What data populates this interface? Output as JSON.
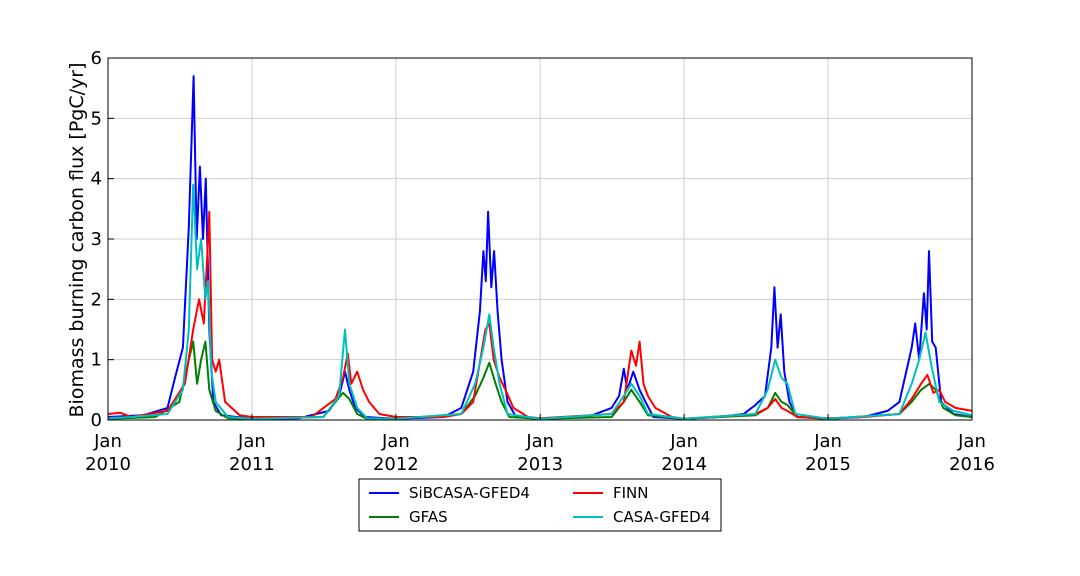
{
  "chart_data": {
    "type": "line",
    "title": "",
    "xlabel": "",
    "ylabel": "Biomass burning carbon flux [PgC/yr]",
    "ylim": [
      0,
      6
    ],
    "xlim": [
      "2010-01-01",
      "2016-01-01"
    ],
    "grid": true,
    "legend_position": "bottom-center",
    "x_ticks": [
      {
        "date": "2010-01-01",
        "month": "Jan",
        "year": "2010"
      },
      {
        "date": "2011-01-01",
        "month": "Jan",
        "year": "2011"
      },
      {
        "date": "2012-01-01",
        "month": "Jan",
        "year": "2012"
      },
      {
        "date": "2013-01-01",
        "month": "Jan",
        "year": "2013"
      },
      {
        "date": "2014-01-01",
        "month": "Jan",
        "year": "2014"
      },
      {
        "date": "2015-01-01",
        "month": "Jan",
        "year": "2015"
      },
      {
        "date": "2016-01-01",
        "month": "Jan",
        "year": "2016"
      }
    ],
    "y_ticks": [
      "0",
      "1",
      "2",
      "3",
      "4",
      "5",
      "6"
    ],
    "series": [
      {
        "name": "SiBCASA-GFED4",
        "color": "#0000ff",
        "points": [
          [
            "2010-01-01",
            0.05
          ],
          [
            "2010-04-01",
            0.08
          ],
          [
            "2010-06-01",
            0.2
          ],
          [
            "2010-06-20",
            0.7
          ],
          [
            "2010-07-10",
            1.2
          ],
          [
            "2010-07-25",
            3.2
          ],
          [
            "2010-08-06",
            5.7
          ],
          [
            "2010-08-14",
            3.0
          ],
          [
            "2010-08-22",
            4.2
          ],
          [
            "2010-08-30",
            3.0
          ],
          [
            "2010-09-06",
            4.0
          ],
          [
            "2010-09-15",
            1.5
          ],
          [
            "2010-09-25",
            0.3
          ],
          [
            "2010-10-15",
            0.08
          ],
          [
            "2011-01-01",
            0.02
          ],
          [
            "2011-05-01",
            0.03
          ],
          [
            "2011-07-15",
            0.15
          ],
          [
            "2011-08-10",
            0.4
          ],
          [
            "2011-08-25",
            0.8
          ],
          [
            "2011-09-05",
            0.5
          ],
          [
            "2011-09-20",
            0.2
          ],
          [
            "2011-10-15",
            0.05
          ],
          [
            "2012-01-01",
            0.02
          ],
          [
            "2012-05-01",
            0.05
          ],
          [
            "2012-06-15",
            0.2
          ],
          [
            "2012-07-15",
            0.8
          ],
          [
            "2012-08-01",
            1.8
          ],
          [
            "2012-08-10",
            2.8
          ],
          [
            "2012-08-16",
            2.3
          ],
          [
            "2012-08-22",
            3.45
          ],
          [
            "2012-08-30",
            2.2
          ],
          [
            "2012-09-06",
            2.8
          ],
          [
            "2012-09-15",
            1.8
          ],
          [
            "2012-09-25",
            1.0
          ],
          [
            "2012-10-10",
            0.3
          ],
          [
            "2012-11-01",
            0.05
          ],
          [
            "2013-01-01",
            0.02
          ],
          [
            "2013-05-01",
            0.05
          ],
          [
            "2013-07-01",
            0.2
          ],
          [
            "2013-07-20",
            0.4
          ],
          [
            "2013-08-01",
            0.85
          ],
          [
            "2013-08-10",
            0.5
          ],
          [
            "2013-08-25",
            0.8
          ],
          [
            "2013-09-10",
            0.5
          ],
          [
            "2013-09-25",
            0.3
          ],
          [
            "2013-10-15",
            0.05
          ],
          [
            "2014-01-01",
            0.02
          ],
          [
            "2014-04-01",
            0.05
          ],
          [
            "2014-06-01",
            0.1
          ],
          [
            "2014-07-01",
            0.25
          ],
          [
            "2014-07-25",
            0.4
          ],
          [
            "2014-08-10",
            1.2
          ],
          [
            "2014-08-18",
            2.2
          ],
          [
            "2014-08-26",
            1.2
          ],
          [
            "2014-09-03",
            1.75
          ],
          [
            "2014-09-12",
            0.8
          ],
          [
            "2014-09-25",
            0.3
          ],
          [
            "2014-10-15",
            0.05
          ],
          [
            "2015-01-01",
            0.02
          ],
          [
            "2015-04-01",
            0.05
          ],
          [
            "2015-06-01",
            0.15
          ],
          [
            "2015-07-01",
            0.3
          ],
          [
            "2015-08-01",
            1.2
          ],
          [
            "2015-08-10",
            1.6
          ],
          [
            "2015-08-20",
            1.0
          ],
          [
            "2015-09-01",
            2.1
          ],
          [
            "2015-09-08",
            1.5
          ],
          [
            "2015-09-14",
            2.8
          ],
          [
            "2015-09-22",
            1.3
          ],
          [
            "2015-10-01",
            1.2
          ],
          [
            "2015-10-15",
            0.3
          ],
          [
            "2015-11-15",
            0.1
          ],
          [
            "2016-01-01",
            0.05
          ]
        ]
      },
      {
        "name": "GFAS",
        "color": "#008000",
        "points": [
          [
            "2010-01-01",
            0.02
          ],
          [
            "2010-05-01",
            0.05
          ],
          [
            "2010-07-01",
            0.3
          ],
          [
            "2010-07-25",
            1.0
          ],
          [
            "2010-08-05",
            1.3
          ],
          [
            "2010-08-15",
            0.6
          ],
          [
            "2010-08-25",
            1.0
          ],
          [
            "2010-09-05",
            1.3
          ],
          [
            "2010-09-15",
            0.5
          ],
          [
            "2010-10-01",
            0.15
          ],
          [
            "2010-11-01",
            0.03
          ],
          [
            "2011-01-01",
            0.02
          ],
          [
            "2011-07-01",
            0.05
          ],
          [
            "2011-08-01",
            0.3
          ],
          [
            "2011-08-20",
            0.45
          ],
          [
            "2011-09-05",
            0.35
          ],
          [
            "2011-09-25",
            0.1
          ],
          [
            "2011-10-20",
            0.02
          ],
          [
            "2012-01-01",
            0.02
          ],
          [
            "2012-06-15",
            0.1
          ],
          [
            "2012-07-20",
            0.4
          ],
          [
            "2012-08-10",
            0.7
          ],
          [
            "2012-08-25",
            0.95
          ],
          [
            "2012-09-10",
            0.6
          ],
          [
            "2012-09-25",
            0.3
          ],
          [
            "2012-10-15",
            0.05
          ],
          [
            "2013-01-01",
            0.02
          ],
          [
            "2013-07-01",
            0.05
          ],
          [
            "2013-08-01",
            0.3
          ],
          [
            "2013-08-20",
            0.5
          ],
          [
            "2013-09-10",
            0.3
          ],
          [
            "2013-10-01",
            0.08
          ],
          [
            "2014-01-01",
            0.02
          ],
          [
            "2014-07-01",
            0.08
          ],
          [
            "2014-08-01",
            0.2
          ],
          [
            "2014-08-20",
            0.45
          ],
          [
            "2014-09-05",
            0.3
          ],
          [
            "2014-09-20",
            0.25
          ],
          [
            "2014-10-15",
            0.05
          ],
          [
            "2015-01-01",
            0.02
          ],
          [
            "2015-07-01",
            0.1
          ],
          [
            "2015-08-01",
            0.3
          ],
          [
            "2015-08-25",
            0.5
          ],
          [
            "2015-09-15",
            0.6
          ],
          [
            "2015-10-01",
            0.5
          ],
          [
            "2015-10-20",
            0.2
          ],
          [
            "2015-11-20",
            0.08
          ],
          [
            "2016-01-01",
            0.05
          ]
        ]
      },
      {
        "name": "FINN",
        "color": "#ff0000",
        "points": [
          [
            "2010-01-01",
            0.1
          ],
          [
            "2010-02-01",
            0.12
          ],
          [
            "2010-03-01",
            0.05
          ],
          [
            "2010-06-01",
            0.15
          ],
          [
            "2010-07-15",
            0.6
          ],
          [
            "2010-08-05",
            1.5
          ],
          [
            "2010-08-20",
            2.0
          ],
          [
            "2010-09-01",
            1.6
          ],
          [
            "2010-09-08",
            2.5
          ],
          [
            "2010-09-15",
            3.45
          ],
          [
            "2010-09-22",
            1.0
          ],
          [
            "2010-10-01",
            0.8
          ],
          [
            "2010-10-10",
            1.0
          ],
          [
            "2010-10-25",
            0.3
          ],
          [
            "2010-12-01",
            0.08
          ],
          [
            "2011-01-01",
            0.05
          ],
          [
            "2011-06-01",
            0.05
          ],
          [
            "2011-08-01",
            0.35
          ],
          [
            "2011-08-20",
            0.7
          ],
          [
            "2011-09-01",
            1.1
          ],
          [
            "2011-09-10",
            0.6
          ],
          [
            "2011-09-25",
            0.8
          ],
          [
            "2011-10-10",
            0.5
          ],
          [
            "2011-10-25",
            0.3
          ],
          [
            "2011-11-20",
            0.1
          ],
          [
            "2012-01-01",
            0.05
          ],
          [
            "2012-05-01",
            0.05
          ],
          [
            "2012-06-15",
            0.1
          ],
          [
            "2012-07-15",
            0.3
          ],
          [
            "2012-08-15",
            1.5
          ],
          [
            "2012-08-25",
            1.6
          ],
          [
            "2012-09-05",
            1.0
          ],
          [
            "2012-09-20",
            0.7
          ],
          [
            "2012-10-05",
            0.5
          ],
          [
            "2012-10-25",
            0.2
          ],
          [
            "2012-12-01",
            0.05
          ],
          [
            "2013-01-01",
            0.03
          ],
          [
            "2013-07-01",
            0.1
          ],
          [
            "2013-08-01",
            0.3
          ],
          [
            "2013-08-20",
            1.15
          ],
          [
            "2013-09-01",
            0.9
          ],
          [
            "2013-09-10",
            1.3
          ],
          [
            "2013-09-20",
            0.6
          ],
          [
            "2013-10-01",
            0.4
          ],
          [
            "2013-10-20",
            0.2
          ],
          [
            "2013-12-01",
            0.05
          ],
          [
            "2014-01-01",
            0.02
          ],
          [
            "2014-07-01",
            0.1
          ],
          [
            "2014-08-01",
            0.2
          ],
          [
            "2014-08-20",
            0.35
          ],
          [
            "2014-09-05",
            0.2
          ],
          [
            "2014-09-20",
            0.15
          ],
          [
            "2014-10-15",
            0.05
          ],
          [
            "2015-01-01",
            0.03
          ],
          [
            "2015-04-01",
            0.05
          ],
          [
            "2015-07-01",
            0.1
          ],
          [
            "2015-08-01",
            0.35
          ],
          [
            "2015-08-25",
            0.6
          ],
          [
            "2015-09-10",
            0.75
          ],
          [
            "2015-09-25",
            0.45
          ],
          [
            "2015-10-10",
            0.5
          ],
          [
            "2015-10-25",
            0.3
          ],
          [
            "2015-11-20",
            0.2
          ],
          [
            "2016-01-01",
            0.15
          ]
        ]
      },
      {
        "name": "CASA-GFED4",
        "color": "#00bfbf",
        "points": [
          [
            "2010-01-01",
            0.03
          ],
          [
            "2010-03-01",
            0.05
          ],
          [
            "2010-06-01",
            0.1
          ],
          [
            "2010-07-10",
            0.5
          ],
          [
            "2010-07-25",
            1.5
          ],
          [
            "2010-08-05",
            3.9
          ],
          [
            "2010-08-15",
            2.5
          ],
          [
            "2010-08-25",
            3.0
          ],
          [
            "2010-09-05",
            2.0
          ],
          [
            "2010-09-12",
            2.3
          ],
          [
            "2010-09-20",
            0.8
          ],
          [
            "2010-10-01",
            0.3
          ],
          [
            "2010-11-01",
            0.05
          ],
          [
            "2011-01-01",
            0.02
          ],
          [
            "2011-07-01",
            0.05
          ],
          [
            "2011-08-10",
            0.4
          ],
          [
            "2011-08-25",
            1.5
          ],
          [
            "2011-09-05",
            0.6
          ],
          [
            "2011-09-25",
            0.2
          ],
          [
            "2011-10-20",
            0.03
          ],
          [
            "2012-01-01",
            0.02
          ],
          [
            "2012-06-15",
            0.1
          ],
          [
            "2012-07-20",
            0.6
          ],
          [
            "2012-08-10",
            1.2
          ],
          [
            "2012-08-25",
            1.75
          ],
          [
            "2012-09-05",
            1.2
          ],
          [
            "2012-09-20",
            0.6
          ],
          [
            "2012-10-10",
            0.1
          ],
          [
            "2013-01-01",
            0.02
          ],
          [
            "2013-07-01",
            0.1
          ],
          [
            "2013-08-01",
            0.4
          ],
          [
            "2013-08-20",
            0.6
          ],
          [
            "2013-09-10",
            0.4
          ],
          [
            "2013-10-01",
            0.1
          ],
          [
            "2014-01-01",
            0.02
          ],
          [
            "2014-07-01",
            0.1
          ],
          [
            "2014-08-01",
            0.5
          ],
          [
            "2014-08-20",
            1.0
          ],
          [
            "2014-09-05",
            0.7
          ],
          [
            "2014-09-20",
            0.6
          ],
          [
            "2014-10-10",
            0.1
          ],
          [
            "2015-01-01",
            0.02
          ],
          [
            "2015-07-01",
            0.1
          ],
          [
            "2015-08-01",
            0.6
          ],
          [
            "2015-08-20",
            1.0
          ],
          [
            "2015-09-05",
            1.45
          ],
          [
            "2015-09-20",
            0.9
          ],
          [
            "2015-10-10",
            0.3
          ],
          [
            "2015-11-15",
            0.15
          ],
          [
            "2016-01-01",
            0.08
          ]
        ]
      }
    ]
  }
}
